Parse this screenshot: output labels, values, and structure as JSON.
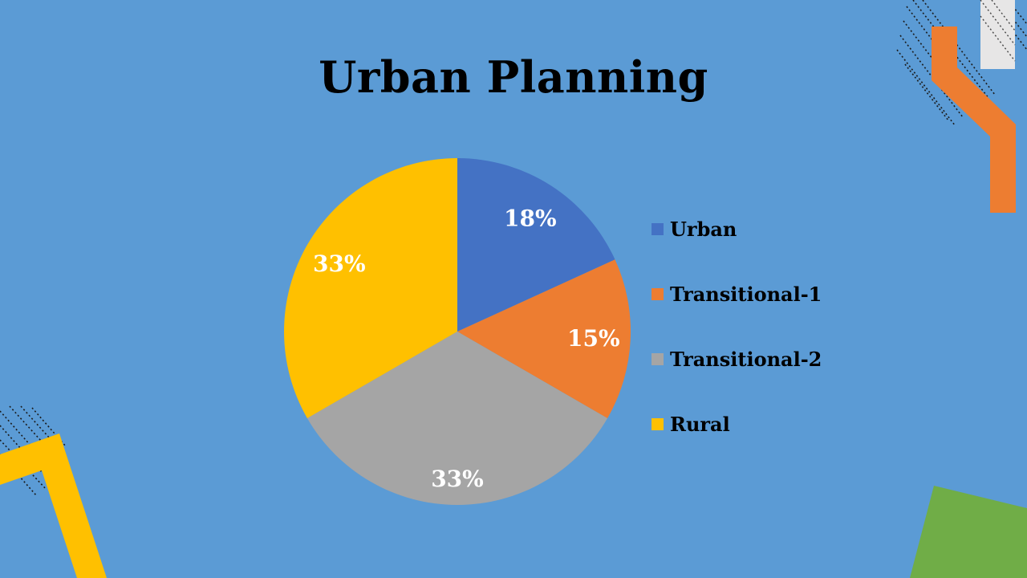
{
  "slide": {
    "background": "#5B9BD5",
    "title": "Urban Planning"
  },
  "chart_data": {
    "type": "pie",
    "title": "Urban Planning",
    "legend_position": "right",
    "categories": [
      "Urban",
      "Transitional-1",
      "Transitional-2",
      "Rural"
    ],
    "values": [
      18,
      15,
      33,
      33
    ],
    "labels": [
      "18%",
      "15%",
      "33%",
      "33%"
    ],
    "colors": [
      "#4472C4",
      "#ED7D31",
      "#A5A5A5",
      "#FFC000"
    ]
  },
  "decorations": {
    "orange": "#ED7D31",
    "yellow": "#FFC000",
    "green": "#70AD47",
    "light_gray": "#E7E6E6",
    "hatch_color": "#1a1a1a"
  }
}
